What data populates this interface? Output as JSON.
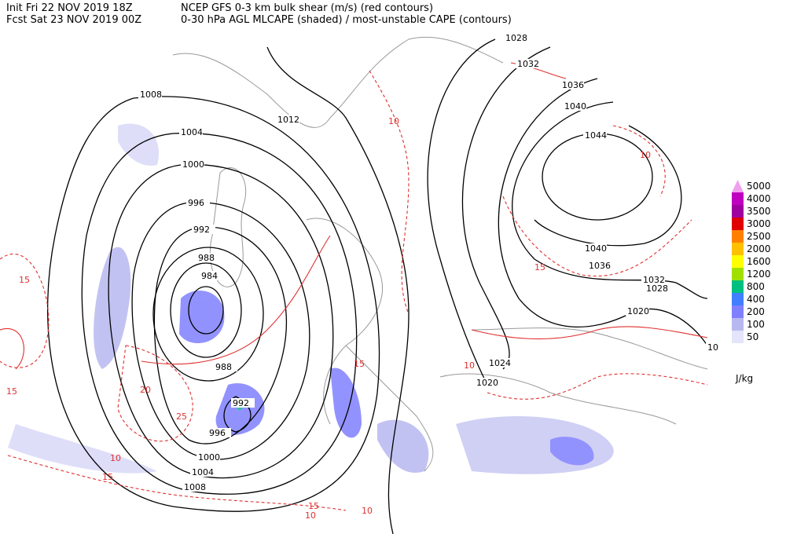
{
  "header": {
    "init": "Init  Fri 22 NOV 2019 18Z",
    "fcst": "Fcst Sat 23 NOV 2019 00Z",
    "title1": "NCEP GFS 0-3 km bulk shear (m/s) (red contours)",
    "title2": "0-30 hPa AGL MLCAPE (shaded) / most-unstable CAPE (contours)"
  },
  "map": {
    "black_labels": [
      "1028",
      "1032",
      "1036",
      "1040",
      "1044",
      "1012",
      "1008",
      "1004",
      "1000",
      "996",
      "992",
      "988",
      "984",
      "988",
      "992",
      "996",
      "1000",
      "1004",
      "1008",
      "1040",
      "1036",
      "1032",
      "1028",
      "1020",
      "1024",
      "1020",
      "10"
    ],
    "red_labels": [
      "15",
      "15",
      "10",
      "15",
      "20",
      "25",
      "10",
      "15",
      "10",
      "15",
      "10",
      "10",
      "10",
      "15"
    ]
  },
  "legend": {
    "unit": "J/kg",
    "entries": [
      {
        "label": "5000",
        "color": "#f0a0f0"
      },
      {
        "label": "4000",
        "color": "#c000c0"
      },
      {
        "label": "3500",
        "color": "#a000a0"
      },
      {
        "label": "3000",
        "color": "#e00000"
      },
      {
        "label": "2500",
        "color": "#ff8000"
      },
      {
        "label": "2000",
        "color": "#ffc000"
      },
      {
        "label": "1600",
        "color": "#ffff00"
      },
      {
        "label": "1200",
        "color": "#a0e000"
      },
      {
        "label": "800",
        "color": "#00c080"
      },
      {
        "label": "400",
        "color": "#4080ff"
      },
      {
        "label": "200",
        "color": "#8080ff"
      },
      {
        "label": "100",
        "color": "#b8b8f0"
      },
      {
        "label": "50",
        "color": "#e4e4fa"
      }
    ]
  }
}
